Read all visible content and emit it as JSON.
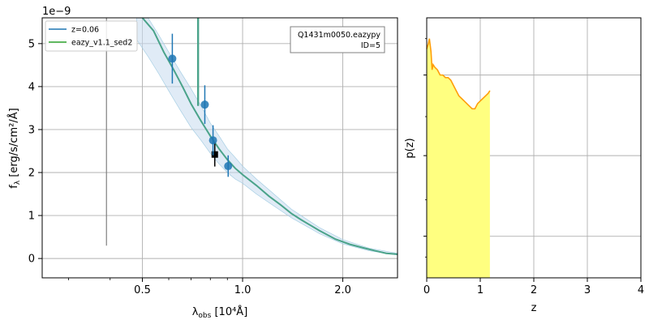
{
  "chart_data": [
    {
      "type": "scatter",
      "panel": "sed",
      "title": "",
      "offset_label": "1e−9",
      "xlabel_main": "λ",
      "xlabel_sub": "obs",
      "xlabel_rest": " [10⁴Å]",
      "ylabel_main": "f",
      "ylabel_sub": "λ",
      "ylabel_rest": " [erg/s/cm²/Å]",
      "xscale": "log",
      "xlim": [
        0.25,
        2.92
      ],
      "ylim": [
        -0.45,
        5.6
      ],
      "grid": true,
      "x_ticks": [
        0.5,
        1.0,
        2.0
      ],
      "x_tick_labels": [
        "0.5",
        "1.0",
        "2.0"
      ],
      "x_minor_ticks": [
        0.3,
        0.4,
        0.6,
        0.7,
        0.8,
        0.9
      ],
      "y_ticks": [
        0,
        1,
        2,
        3,
        4,
        5
      ],
      "y_tick_labels": [
        "0",
        "1",
        "2",
        "3",
        "4",
        "5"
      ],
      "legend": {
        "placement": "top-left",
        "entries": [
          {
            "label": "z=0.06",
            "color": "#1f77b4"
          },
          {
            "label": "eazy_v1.1_sed2",
            "color": "#2ca02c"
          }
        ]
      },
      "annotation": {
        "placement": "top-right",
        "line1": "Q1431m0050.eazypy",
        "line2": "ID=5"
      },
      "series": [
        {
          "kind": "photometry",
          "color": "#1f77b4",
          "points": [
            {
              "x": 0.615,
              "y": 4.65,
              "err": 0.58
            },
            {
              "x": 0.77,
              "y": 3.58,
              "err": 0.45
            },
            {
              "x": 0.815,
              "y": 2.75,
              "err": 0.35
            },
            {
              "x": 0.905,
              "y": 2.15,
              "err": 0.25
            }
          ]
        },
        {
          "kind": "model_point",
          "color": "#000000",
          "points": [
            {
              "x": 0.825,
              "y": 2.42,
              "err": 0.28
            }
          ]
        },
        {
          "kind": "template",
          "color": "#4aa38a",
          "x": [
            0.5,
            0.54,
            0.58,
            0.62,
            0.66,
            0.7,
            0.75,
            0.8,
            0.85,
            0.9,
            0.95,
            1.0,
            1.1,
            1.2,
            1.3,
            1.4,
            1.5,
            1.7,
            1.9,
            2.1,
            2.3,
            2.5,
            2.7,
            2.92
          ],
          "y": [
            5.8,
            5.3,
            4.8,
            4.4,
            4.0,
            3.6,
            3.2,
            2.85,
            2.55,
            2.3,
            2.1,
            1.95,
            1.7,
            1.45,
            1.25,
            1.05,
            0.9,
            0.65,
            0.45,
            0.33,
            0.25,
            0.18,
            0.12,
            0.1
          ]
        },
        {
          "kind": "template_band",
          "color": "#c6dbef",
          "x": [
            0.48,
            0.52,
            0.56,
            0.6,
            0.65,
            0.7,
            0.75,
            0.8,
            0.85,
            0.9,
            0.95,
            1.0,
            1.1,
            1.2,
            1.4,
            1.7,
            2.0,
            2.4,
            2.92
          ],
          "y_low": [
            5.1,
            4.7,
            4.3,
            3.9,
            3.45,
            3.05,
            2.75,
            2.45,
            2.2,
            2.0,
            1.85,
            1.75,
            1.5,
            1.3,
            0.95,
            0.58,
            0.34,
            0.18,
            0.08
          ],
          "y_high": [
            5.9,
            5.6,
            5.2,
            4.8,
            4.35,
            3.95,
            3.55,
            3.15,
            2.85,
            2.55,
            2.35,
            2.15,
            1.85,
            1.6,
            1.15,
            0.72,
            0.44,
            0.24,
            0.12
          ]
        },
        {
          "kind": "spike",
          "color": "#4aa38a",
          "x": 0.735,
          "y_from": 3.55,
          "y_to": 5.6
        },
        {
          "kind": "vertical_line",
          "color": "#808080",
          "x": 0.39,
          "y_from": 0.3,
          "y_to": 5.6
        }
      ]
    },
    {
      "type": "area",
      "panel": "pz",
      "title": "",
      "xlabel": "z",
      "ylabel": "p(z)",
      "xlim": [
        0,
        4
      ],
      "ylim": [
        0,
        1
      ],
      "grid": true,
      "x_ticks": [
        0,
        1,
        2,
        3,
        4
      ],
      "x_tick_labels": [
        "0",
        "1",
        "2",
        "3",
        "4"
      ],
      "y_ticks": [
        0.16,
        0.47,
        0.78
      ],
      "y_tick_labels": [
        "",
        "",
        ""
      ],
      "fill_color": "#ffff80",
      "line_color": "#ff9e0a",
      "x": [
        0.0,
        0.03,
        0.05,
        0.08,
        0.1,
        0.12,
        0.15,
        0.2,
        0.25,
        0.3,
        0.35,
        0.4,
        0.45,
        0.5,
        0.55,
        0.6,
        0.65,
        0.7,
        0.75,
        0.8,
        0.85,
        0.9,
        0.95,
        1.0,
        1.05,
        1.1,
        1.15,
        1.18
      ],
      "y": [
        0.88,
        0.9,
        0.92,
        0.87,
        0.8,
        0.82,
        0.81,
        0.8,
        0.78,
        0.78,
        0.77,
        0.77,
        0.76,
        0.74,
        0.72,
        0.7,
        0.69,
        0.68,
        0.67,
        0.66,
        0.65,
        0.65,
        0.67,
        0.68,
        0.69,
        0.7,
        0.71,
        0.72
      ]
    }
  ]
}
